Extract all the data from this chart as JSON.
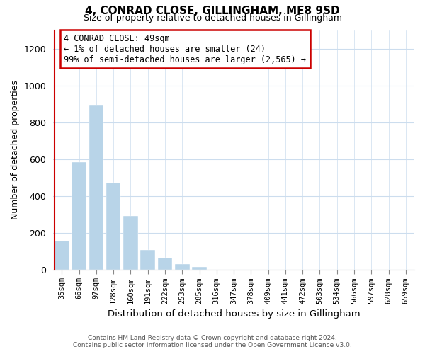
{
  "title": "4, CONRAD CLOSE, GILLINGHAM, ME8 9SD",
  "subtitle": "Size of property relative to detached houses in Gillingham",
  "xlabel": "Distribution of detached houses by size in Gillingham",
  "ylabel": "Number of detached properties",
  "categories": [
    "35sqm",
    "66sqm",
    "97sqm",
    "128sqm",
    "160sqm",
    "191sqm",
    "222sqm",
    "253sqm",
    "285sqm",
    "316sqm",
    "347sqm",
    "378sqm",
    "409sqm",
    "441sqm",
    "472sqm",
    "503sqm",
    "534sqm",
    "566sqm",
    "597sqm",
    "628sqm",
    "659sqm"
  ],
  "bar_values": [
    155,
    585,
    890,
    470,
    290,
    105,
    65,
    30,
    15,
    0,
    0,
    0,
    0,
    0,
    0,
    0,
    0,
    0,
    0,
    0,
    0
  ],
  "highlight_color": "#cc0000",
  "bar_color": "#b8d4e8",
  "ylim": [
    0,
    1300
  ],
  "yticks": [
    0,
    200,
    400,
    600,
    800,
    1000,
    1200
  ],
  "annotation_title": "4 CONRAD CLOSE: 49sqm",
  "annotation_line1": "← 1% of detached houses are smaller (24)",
  "annotation_line2": "99% of semi-detached houses are larger (2,565) →",
  "footer_line1": "Contains HM Land Registry data © Crown copyright and database right 2024.",
  "footer_line2": "Contains public sector information licensed under the Open Government Licence v3.0.",
  "bg_color": "#ffffff",
  "grid_color": "#ccddee"
}
